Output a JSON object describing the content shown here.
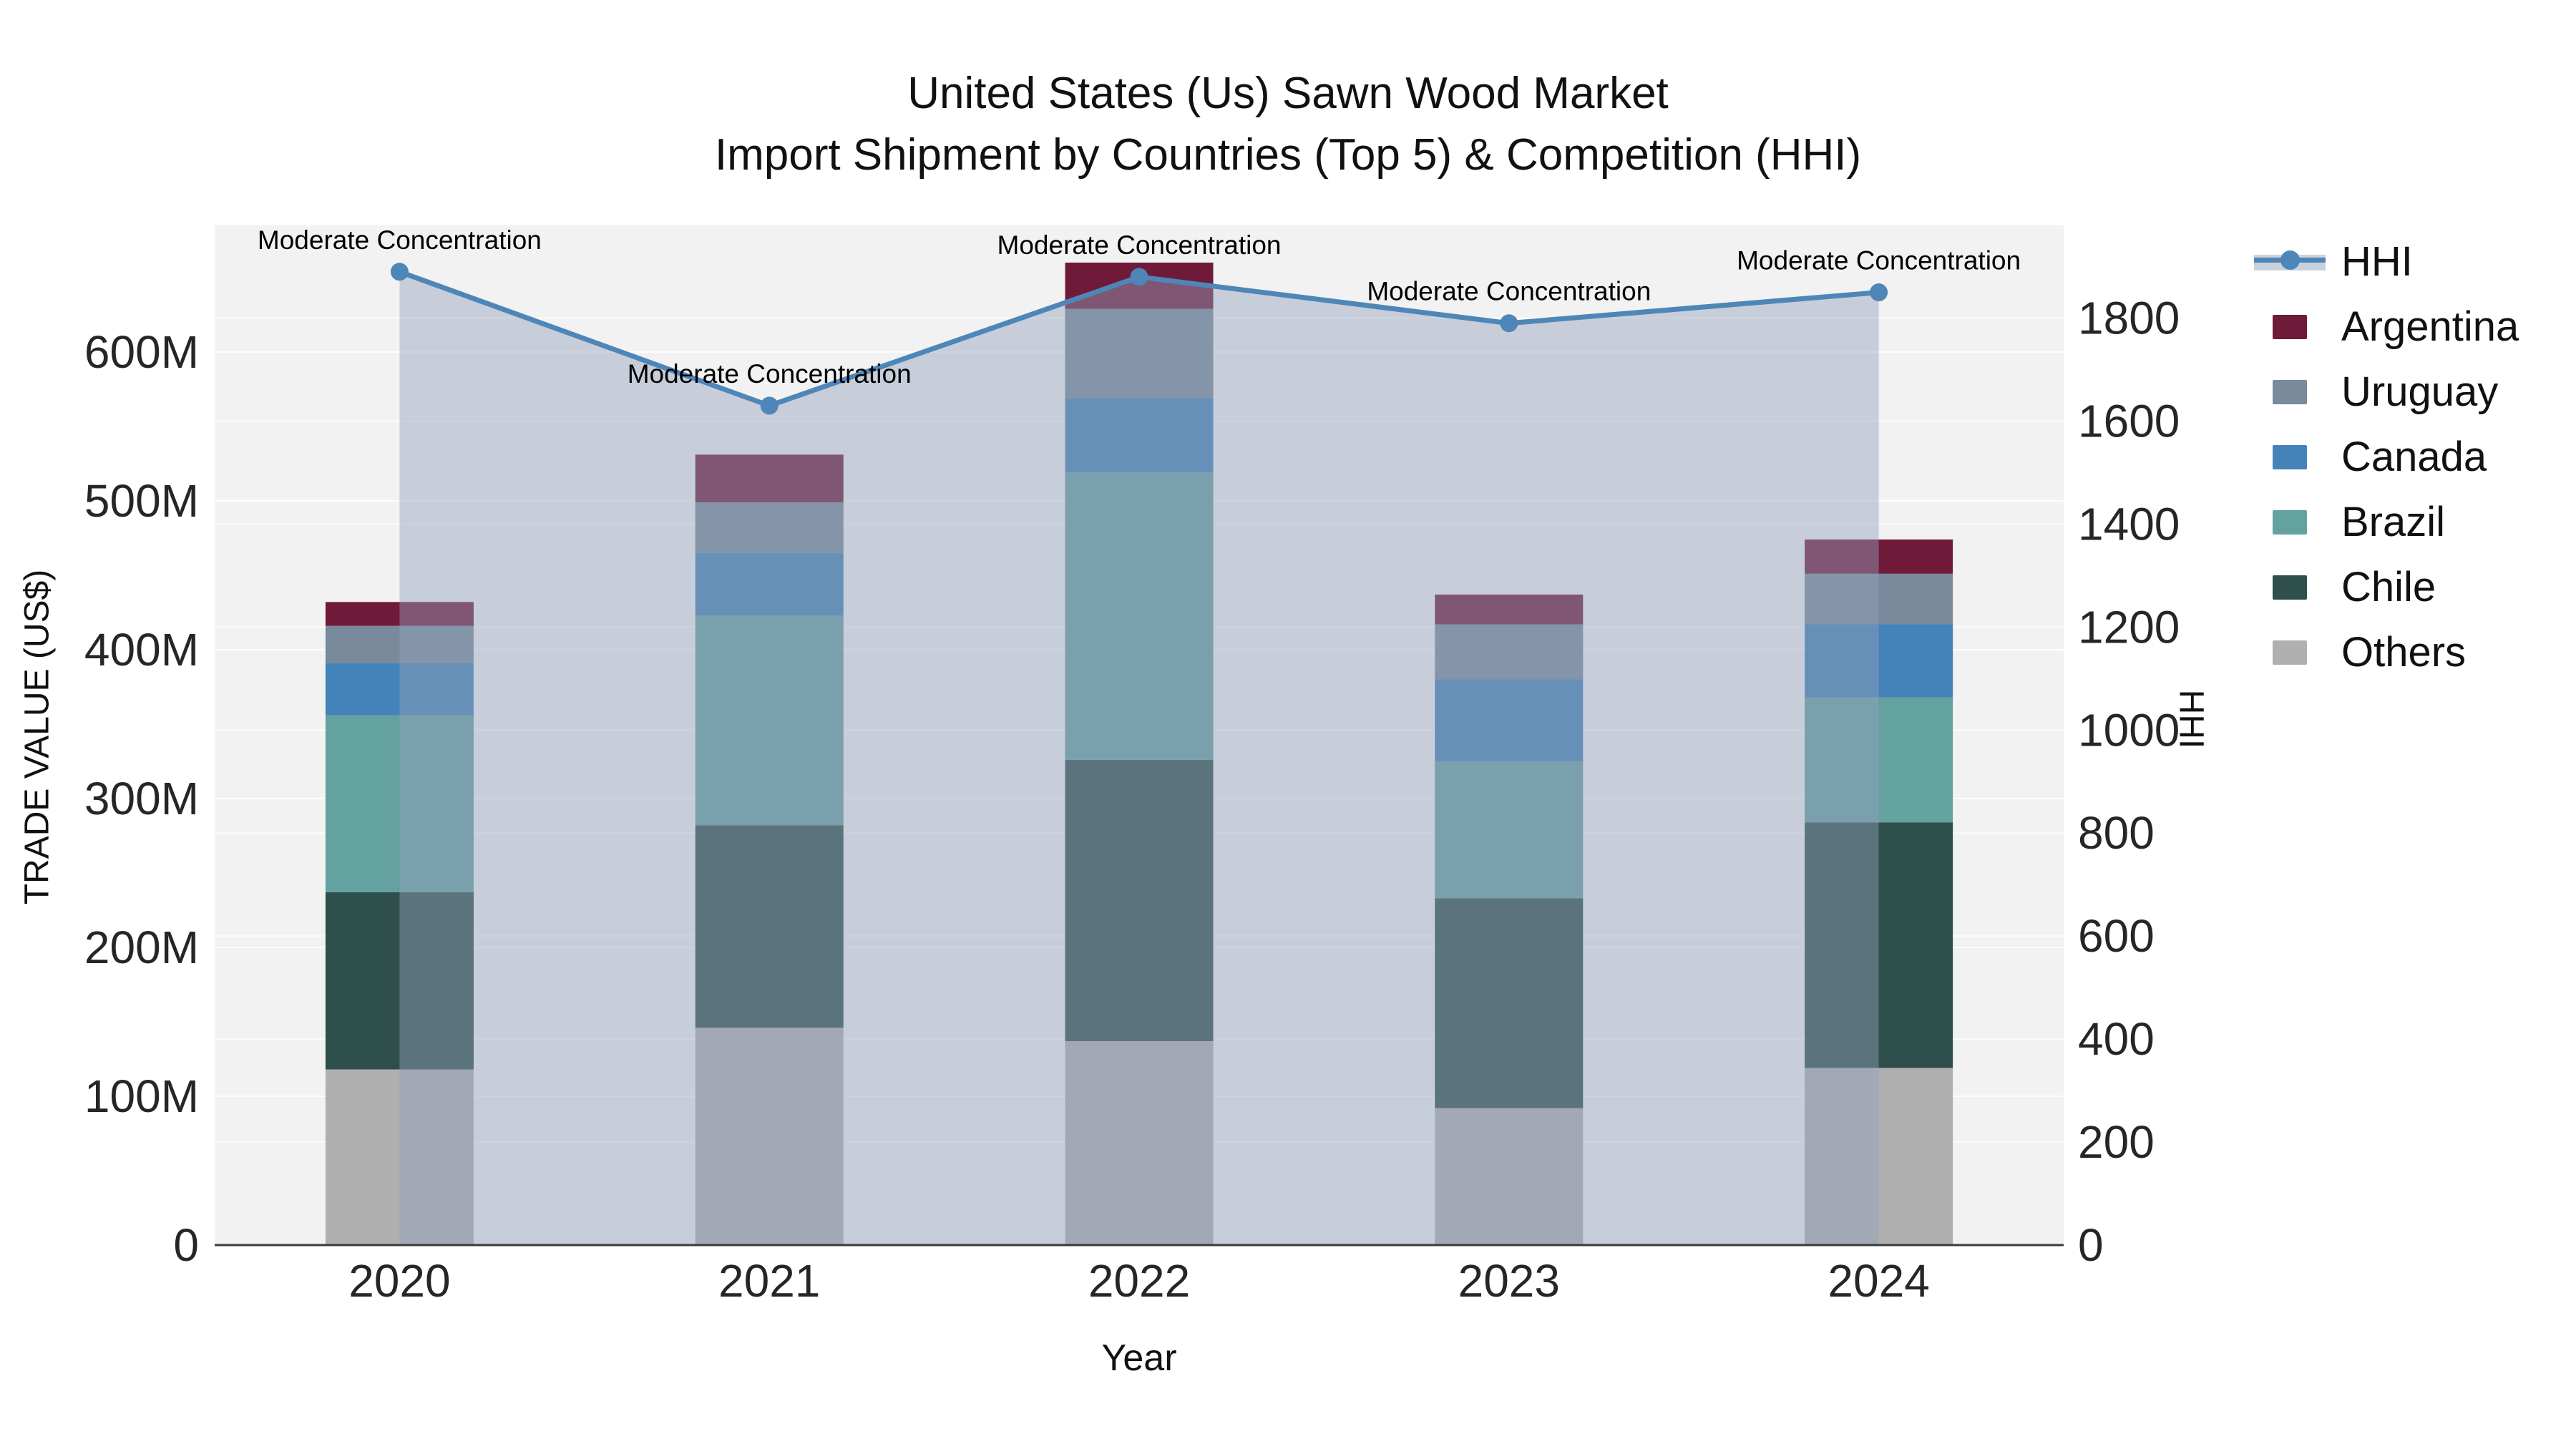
{
  "figure": {
    "title_line1": "United States (Us) Sawn Wood Market",
    "title_line2": "Import Shipment by Countries (Top 5) & Competition (HHI)"
  },
  "axes": {
    "left": {
      "title": "TRADE VALUE (US$)",
      "tick_labels": [
        "0",
        "100M",
        "200M",
        "300M",
        "400M",
        "500M",
        "600M"
      ],
      "tick_values": [
        0,
        100,
        200,
        300,
        400,
        500,
        600
      ]
    },
    "right": {
      "title": "HHI",
      "tick_labels": [
        "0",
        "200",
        "400",
        "600",
        "800",
        "1000",
        "1200",
        "1400",
        "1600",
        "1800"
      ],
      "tick_values": [
        0,
        200,
        400,
        600,
        800,
        1000,
        1200,
        1400,
        1600,
        1800
      ]
    },
    "x": {
      "title": "Year",
      "categories": [
        "2020",
        "2021",
        "2022",
        "2023",
        "2024"
      ]
    }
  },
  "chart_data": {
    "type": "stacked-bar+line",
    "title": "United States (Us) Sawn Wood Market — Import Shipment by Countries (Top 5) & Competition (HHI)",
    "categories": [
      "2020",
      "2021",
      "2022",
      "2023",
      "2024"
    ],
    "value_unit": "M US$",
    "ylim_left": [
      0,
      685
    ],
    "ylim_right": [
      0,
      1980
    ],
    "grid": true,
    "legend_position": "right",
    "series": [
      {
        "name": "Others",
        "color": "#b0b0b0",
        "values": [
          118,
          146,
          137,
          92,
          119
        ]
      },
      {
        "name": "Chile",
        "color": "#2e4f4b",
        "values": [
          119,
          136,
          189,
          141,
          165
        ]
      },
      {
        "name": "Brazil",
        "color": "#64a1a1",
        "values": [
          119,
          141,
          193,
          92,
          84
        ]
      },
      {
        "name": "Canada",
        "color": "#4483b9",
        "values": [
          35,
          42,
          50,
          55,
          49
        ]
      },
      {
        "name": "Uruguay",
        "color": "#788a9c",
        "values": [
          25,
          34,
          60,
          37,
          34
        ]
      },
      {
        "name": "Argentina",
        "color": "#701a3a",
        "values": [
          16,
          32,
          31,
          20,
          23
        ]
      }
    ],
    "bar_totals": [
      432,
      531,
      660,
      437,
      474
    ],
    "hhi": {
      "name": "HHI",
      "color": "#4e86b8",
      "area_fill": "rgba(146,160,186,0.45)",
      "area_swatch": "#c9d1dc",
      "values": [
        1890,
        1630,
        1880,
        1790,
        1850
      ]
    },
    "annotations": [
      "Moderate Concentration",
      "Moderate Concentration",
      "Moderate Concentration",
      "Moderate Concentration",
      "Moderate Concentration"
    ]
  },
  "legend": {
    "items": [
      {
        "label": "HHI",
        "series": "HHI"
      },
      {
        "label": "Argentina",
        "series": "Argentina"
      },
      {
        "label": "Uruguay",
        "series": "Uruguay"
      },
      {
        "label": "Canada",
        "series": "Canada"
      },
      {
        "label": "Brazil",
        "series": "Brazil"
      },
      {
        "label": "Chile",
        "series": "Chile"
      },
      {
        "label": "Others",
        "series": "Others"
      }
    ]
  },
  "colors": {
    "plot_bg": "#f2f2f2",
    "gridline": "#ffffff",
    "spine": "#3a3a3a",
    "tick_text": "#262626"
  }
}
